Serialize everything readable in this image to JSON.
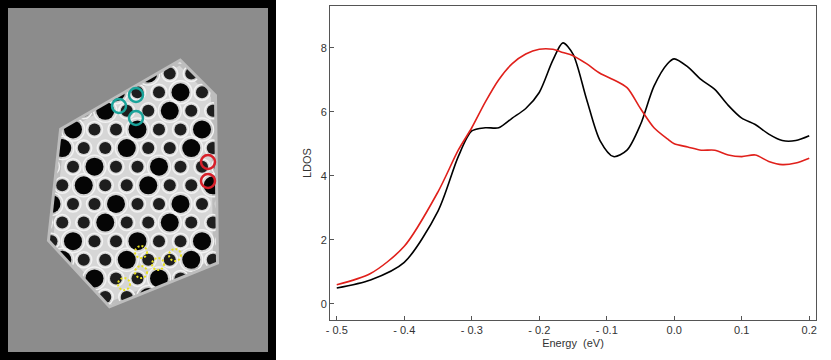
{
  "chart_data": {
    "type": "line",
    "x_label": "Energy  (eV)",
    "y_label": "LDOS",
    "x": [
      -0.5,
      -0.45,
      -0.4,
      -0.35,
      -0.32,
      -0.3,
      -0.28,
      -0.26,
      -0.24,
      -0.22,
      -0.2,
      -0.18,
      -0.165,
      -0.15,
      -0.13,
      -0.11,
      -0.09,
      -0.07,
      -0.05,
      -0.03,
      -0.01,
      0.0,
      0.02,
      0.04,
      0.06,
      0.08,
      0.1,
      0.12,
      0.14,
      0.16,
      0.18,
      0.2
    ],
    "series": [
      {
        "color": "#000000",
        "values": [
          0.5,
          0.75,
          1.3,
          2.9,
          4.6,
          5.4,
          5.5,
          5.5,
          5.8,
          6.1,
          6.6,
          7.6,
          8.15,
          7.8,
          6.4,
          5.1,
          4.6,
          4.8,
          5.6,
          6.8,
          7.5,
          7.65,
          7.4,
          7.0,
          6.7,
          6.2,
          5.8,
          5.6,
          5.3,
          5.1,
          5.1,
          5.25
        ]
      },
      {
        "color": "#e0201b",
        "values": [
          0.6,
          0.95,
          1.8,
          3.5,
          4.8,
          5.5,
          6.3,
          7.0,
          7.5,
          7.8,
          7.95,
          7.95,
          7.85,
          7.75,
          7.5,
          7.2,
          7.0,
          6.75,
          6.1,
          5.5,
          5.15,
          5.0,
          4.9,
          4.8,
          4.8,
          4.65,
          4.6,
          4.65,
          4.45,
          4.35,
          4.4,
          4.55
        ]
      }
    ],
    "xlim": [
      -0.51,
      0.21
    ],
    "ylim": [
      -0.5,
      9.3
    ],
    "xticks": [
      {
        "value": -0.5,
        "label": "- 0.5"
      },
      {
        "value": -0.4,
        "label": "- 0.4"
      },
      {
        "value": -0.3,
        "label": "- 0.3"
      },
      {
        "value": -0.2,
        "label": "- 0.2"
      },
      {
        "value": -0.1,
        "label": "- 0.1"
      },
      {
        "value": 0,
        "label": "0.0"
      },
      {
        "value": 0.1,
        "label": "0.1"
      },
      {
        "value": 0.2,
        "label": "0.2"
      }
    ],
    "yticks": [
      0,
      2,
      4,
      6,
      8
    ],
    "grid": false
  }
}
